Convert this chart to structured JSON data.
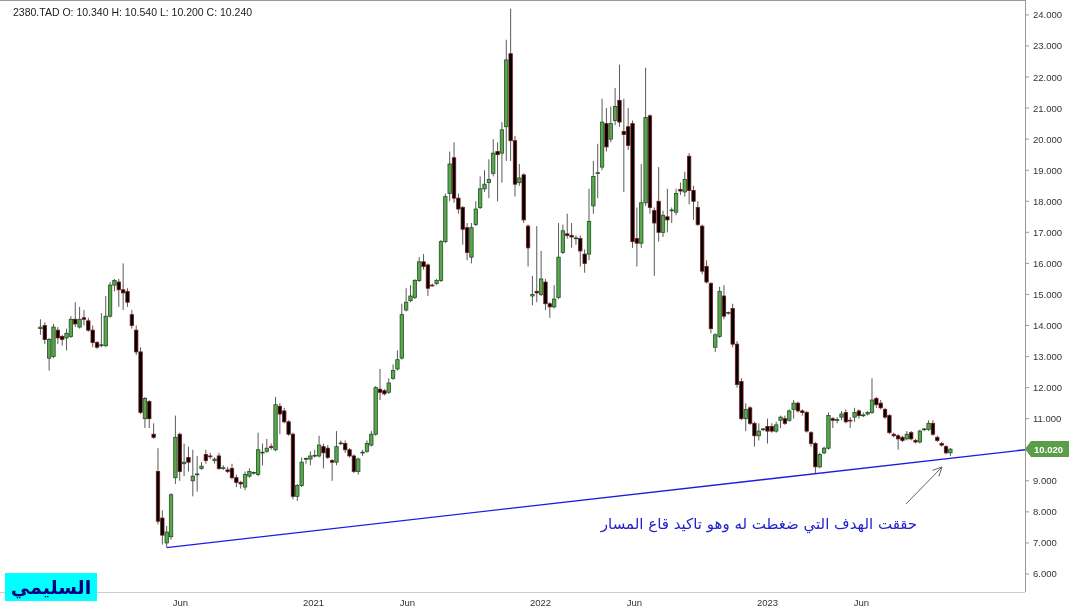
{
  "chart_data": {
    "type": "candlestick",
    "title": "2380.TAD   O: 10.340   H: 10.540   L: 10.200   C: 10.240",
    "x": [
      "2019-10-20",
      "2019-10-27",
      "2019-11-03",
      "2019-11-10",
      "2019-11-17",
      "2019-11-24",
      "2019-12-01",
      "2019-12-08",
      "2019-12-15",
      "2019-12-22",
      "2019-12-29",
      "2020-01-05",
      "2020-01-12",
      "2020-01-19",
      "2020-01-26",
      "2020-02-02",
      "2020-02-09",
      "2020-02-16",
      "2020-02-23",
      "2020-03-01",
      "2020-03-08",
      "2020-03-15",
      "2020-03-22",
      "2020-03-29",
      "2020-04-05",
      "2020-04-12",
      "2020-04-19",
      "2020-04-26",
      "2020-05-03",
      "2020-05-10",
      "2020-05-17",
      "2020-05-24",
      "2020-05-31",
      "2020-06-07",
      "2020-06-14",
      "2020-06-21",
      "2020-06-28",
      "2020-07-05",
      "2020-07-12",
      "2020-07-19",
      "2020-07-26",
      "2020-08-02",
      "2020-08-09",
      "2020-08-16",
      "2020-08-23",
      "2020-08-30",
      "2020-09-06",
      "2020-09-13",
      "2020-09-20",
      "2020-09-27",
      "2020-10-04",
      "2020-10-11",
      "2020-10-18",
      "2020-10-25",
      "2020-11-01",
      "2020-11-08",
      "2020-11-15",
      "2020-11-22",
      "2020-11-29",
      "2020-12-06",
      "2020-12-13",
      "2020-12-20",
      "2020-12-27",
      "2021-01-03",
      "2021-01-10",
      "2021-01-17",
      "2021-01-24",
      "2021-01-31",
      "2021-02-07",
      "2021-02-14",
      "2021-02-21",
      "2021-02-28",
      "2021-03-07",
      "2021-03-14",
      "2021-03-21",
      "2021-03-28",
      "2021-04-04",
      "2021-04-11",
      "2021-04-18",
      "2021-04-25",
      "2021-05-02",
      "2021-05-09",
      "2021-05-16",
      "2021-05-23",
      "2021-05-30",
      "2021-06-06",
      "2021-06-13",
      "2021-06-20",
      "2021-06-27",
      "2021-07-04",
      "2021-07-11",
      "2021-07-18",
      "2021-07-25",
      "2021-08-01",
      "2021-08-08",
      "2021-08-15",
      "2021-08-22",
      "2021-08-29",
      "2021-09-05",
      "2021-09-12",
      "2021-09-19",
      "2021-09-26",
      "2021-10-03",
      "2021-10-10",
      "2021-10-17",
      "2021-10-24",
      "2021-10-31",
      "2021-11-07",
      "2021-11-14",
      "2021-11-21",
      "2021-11-28",
      "2021-12-05",
      "2021-12-12",
      "2021-12-19",
      "2021-12-26",
      "2022-01-02",
      "2022-01-09",
      "2022-01-16",
      "2022-01-23",
      "2022-01-30",
      "2022-02-06",
      "2022-02-13",
      "2022-02-20",
      "2022-02-27",
      "2022-03-06",
      "2022-03-13",
      "2022-03-20",
      "2022-03-27",
      "2022-04-03",
      "2022-04-10",
      "2022-04-17",
      "2022-04-24",
      "2022-05-01",
      "2022-05-08",
      "2022-05-15",
      "2022-05-22",
      "2022-05-29",
      "2022-06-05",
      "2022-06-12",
      "2022-06-19",
      "2022-06-26",
      "2022-07-03",
      "2022-07-10",
      "2022-07-17",
      "2022-07-24",
      "2022-07-31",
      "2022-08-07",
      "2022-08-14",
      "2022-08-21",
      "2022-08-28",
      "2022-09-04",
      "2022-09-11",
      "2022-09-18",
      "2022-09-25",
      "2022-10-02",
      "2022-10-09",
      "2022-10-16",
      "2022-10-23",
      "2022-10-30",
      "2022-11-06",
      "2022-11-13",
      "2022-11-20",
      "2022-11-27",
      "2022-12-04",
      "2022-12-11",
      "2022-12-18",
      "2022-12-25",
      "2023-01-01",
      "2023-01-08",
      "2023-01-15",
      "2023-01-22",
      "2023-01-29",
      "2023-02-05",
      "2023-02-12",
      "2023-02-19",
      "2023-02-26",
      "2023-03-05",
      "2023-03-12",
      "2023-03-19",
      "2023-03-26",
      "2023-04-02",
      "2023-04-09",
      "2023-04-16",
      "2023-04-23",
      "2023-04-30",
      "2023-05-07",
      "2023-05-14",
      "2023-05-21",
      "2023-05-28",
      "2023-06-04",
      "2023-06-11",
      "2023-06-18",
      "2023-06-25",
      "2023-07-02",
      "2023-07-09",
      "2023-07-16",
      "2023-07-23",
      "2023-07-30",
      "2023-08-06",
      "2023-08-13",
      "2023-08-20",
      "2023-08-27",
      "2023-09-03",
      "2023-09-10",
      "2023-09-17",
      "2023-09-24",
      "2023-10-01",
      "2023-10-08",
      "2023-10-15",
      "2023-10-22"
    ],
    "ohlc": [
      [
        13.9,
        14.2,
        13.7,
        13.95
      ],
      [
        14.0,
        14.1,
        13.4,
        13.55
      ],
      [
        12.95,
        13.6,
        12.55,
        13.55
      ],
      [
        13.0,
        14.05,
        12.95,
        13.95
      ],
      [
        13.85,
        13.95,
        13.4,
        13.6
      ],
      [
        13.65,
        13.7,
        13.35,
        13.55
      ],
      [
        13.6,
        13.9,
        13.2,
        13.75
      ],
      [
        13.65,
        14.3,
        13.6,
        14.2
      ],
      [
        14.2,
        14.75,
        13.95,
        14.05
      ],
      [
        13.95,
        14.6,
        13.9,
        14.2
      ],
      [
        14.25,
        14.5,
        14.0,
        14.2
      ],
      [
        14.15,
        14.25,
        13.8,
        13.85
      ],
      [
        13.85,
        14.0,
        13.3,
        13.45
      ],
      [
        13.45,
        13.5,
        13.25,
        13.3
      ],
      [
        13.35,
        14.4,
        13.3,
        13.38
      ],
      [
        13.35,
        14.95,
        13.3,
        14.3
      ],
      [
        14.3,
        15.4,
        14.25,
        15.3
      ],
      [
        15.3,
        15.5,
        15.1,
        15.45
      ],
      [
        15.4,
        15.5,
        14.6,
        15.15
      ],
      [
        15.15,
        16.0,
        14.5,
        15.05
      ],
      [
        15.1,
        15.2,
        14.6,
        14.75
      ],
      [
        14.35,
        14.5,
        13.9,
        14.0
      ],
      [
        13.85,
        14.0,
        13.05,
        13.15
      ],
      [
        13.15,
        13.3,
        11.15,
        11.2
      ],
      [
        11.0,
        11.7,
        10.7,
        11.65
      ],
      [
        11.55,
        11.6,
        10.7,
        11.0
      ],
      [
        10.5,
        10.85,
        10.35,
        10.4
      ],
      [
        9.3,
        10.05,
        7.6,
        7.7
      ],
      [
        7.8,
        8.05,
        6.95,
        7.25
      ],
      [
        7.0,
        7.55,
        6.85,
        7.35
      ],
      [
        7.2,
        8.6,
        7.1,
        8.55
      ],
      [
        9.1,
        11.1,
        8.9,
        10.4
      ],
      [
        10.5,
        10.55,
        9.0,
        9.3
      ],
      [
        9.55,
        10.2,
        9.15,
        9.6
      ],
      [
        9.75,
        10.1,
        9.3,
        9.6
      ],
      [
        9.0,
        10.0,
        8.5,
        9.15
      ],
      [
        9.2,
        9.8,
        8.65,
        9.22
      ],
      [
        9.4,
        9.6,
        9.35,
        9.47
      ],
      [
        9.85,
        10.0,
        9.55,
        9.65
      ],
      [
        9.8,
        9.9,
        9.7,
        9.78
      ],
      [
        9.65,
        9.75,
        9.55,
        9.7
      ],
      [
        9.8,
        9.9,
        9.35,
        9.4
      ],
      [
        9.4,
        9.5,
        9.35,
        9.42
      ],
      [
        9.35,
        9.45,
        9.25,
        9.3
      ],
      [
        9.4,
        9.55,
        9.05,
        9.1
      ],
      [
        9.1,
        9.2,
        8.8,
        8.95
      ],
      [
        8.95,
        9.0,
        8.75,
        8.9
      ],
      [
        8.8,
        9.3,
        8.7,
        9.2
      ],
      [
        9.15,
        9.4,
        9.1,
        9.3
      ],
      [
        9.25,
        9.3,
        9.2,
        9.27
      ],
      [
        9.2,
        10.55,
        9.15,
        10.0
      ],
      [
        9.9,
        10.2,
        9.5,
        9.92
      ],
      [
        9.95,
        10.35,
        9.9,
        10.05
      ],
      [
        10.1,
        10.2,
        10.0,
        10.08
      ],
      [
        10.0,
        11.7,
        9.95,
        11.45
      ],
      [
        11.4,
        11.5,
        10.5,
        11.15
      ],
      [
        11.25,
        11.35,
        10.85,
        10.9
      ],
      [
        10.9,
        10.95,
        10.45,
        10.5
      ],
      [
        10.5,
        10.55,
        8.4,
        8.5
      ],
      [
        8.5,
        8.9,
        8.35,
        8.85
      ],
      [
        8.85,
        9.75,
        8.8,
        9.6
      ],
      [
        9.7,
        9.75,
        9.55,
        9.72
      ],
      [
        9.7,
        9.95,
        9.5,
        9.8
      ],
      [
        9.8,
        10.0,
        9.75,
        9.82
      ],
      [
        9.8,
        10.45,
        9.75,
        10.15
      ],
      [
        10.1,
        10.2,
        9.4,
        9.9
      ],
      [
        10.05,
        10.15,
        9.7,
        9.75
      ],
      [
        9.65,
        9.7,
        9.0,
        9.6
      ],
      [
        9.6,
        10.6,
        9.5,
        10.1
      ],
      [
        10.2,
        10.3,
        10.15,
        10.22
      ],
      [
        10.2,
        10.3,
        9.9,
        10.0
      ],
      [
        10.0,
        10.05,
        9.75,
        9.8
      ],
      [
        9.8,
        9.85,
        9.25,
        9.3
      ],
      [
        9.3,
        9.75,
        9.2,
        9.7
      ],
      [
        9.9,
        10.0,
        9.8,
        9.92
      ],
      [
        9.95,
        10.3,
        9.9,
        10.2
      ],
      [
        10.15,
        10.6,
        10.1,
        10.5
      ],
      [
        10.5,
        12.05,
        10.45,
        12.0
      ],
      [
        11.95,
        12.6,
        11.6,
        11.85
      ],
      [
        11.9,
        11.95,
        11.75,
        11.8
      ],
      [
        11.85,
        12.3,
        11.8,
        12.15
      ],
      [
        12.3,
        12.75,
        12.25,
        12.55
      ],
      [
        12.6,
        13.2,
        12.55,
        12.9
      ],
      [
        12.95,
        14.7,
        12.9,
        14.35
      ],
      [
        14.5,
        15.2,
        14.45,
        14.75
      ],
      [
        14.8,
        15.3,
        14.75,
        14.95
      ],
      [
        14.9,
        15.5,
        14.85,
        15.45
      ],
      [
        15.45,
        16.2,
        15.4,
        16.05
      ],
      [
        16.05,
        16.3,
        15.8,
        15.9
      ],
      [
        15.95,
        16.0,
        14.95,
        15.2
      ],
      [
        15.3,
        15.35,
        15.25,
        15.28
      ],
      [
        15.35,
        15.5,
        15.3,
        15.45
      ],
      [
        15.45,
        16.75,
        15.4,
        16.7
      ],
      [
        16.7,
        18.25,
        16.65,
        18.15
      ],
      [
        18.25,
        19.6,
        18.0,
        19.2
      ],
      [
        19.4,
        19.9,
        17.95,
        18.1
      ],
      [
        18.1,
        18.25,
        17.6,
        17.75
      ],
      [
        17.8,
        17.85,
        16.6,
        17.1
      ],
      [
        17.15,
        17.3,
        16.1,
        16.35
      ],
      [
        16.2,
        17.3,
        16.0,
        17.15
      ],
      [
        17.25,
        18.0,
        17.2,
        17.75
      ],
      [
        17.8,
        18.8,
        17.75,
        18.4
      ],
      [
        18.4,
        19.0,
        18.3,
        18.55
      ],
      [
        18.6,
        19.35,
        18.1,
        18.7
      ],
      [
        18.9,
        20.0,
        18.8,
        19.55
      ],
      [
        19.6,
        19.9,
        18.0,
        19.5
      ],
      [
        19.55,
        20.55,
        18.6,
        20.3
      ],
      [
        20.4,
        23.2,
        19.3,
        22.55
      ],
      [
        22.75,
        24.2,
        19.3,
        19.95
      ],
      [
        19.95,
        20.1,
        18.15,
        18.55
      ],
      [
        18.6,
        19.2,
        18.5,
        18.75
      ],
      [
        18.85,
        18.9,
        17.3,
        17.4
      ],
      [
        17.2,
        17.25,
        15.9,
        16.5
      ],
      [
        14.95,
        15.6,
        14.65,
        15.0
      ],
      [
        15.1,
        17.2,
        14.75,
        15.05
      ],
      [
        15.0,
        16.4,
        14.95,
        15.5
      ],
      [
        15.4,
        15.5,
        14.5,
        14.7
      ],
      [
        14.7,
        14.75,
        14.25,
        14.6
      ],
      [
        14.6,
        15.3,
        14.55,
        14.85
      ],
      [
        14.9,
        17.3,
        14.85,
        16.2
      ],
      [
        16.35,
        17.25,
        16.3,
        17.05
      ],
      [
        16.95,
        17.6,
        16.8,
        16.9
      ],
      [
        16.9,
        17.3,
        16.5,
        16.85
      ],
      [
        16.8,
        16.9,
        16.6,
        16.82
      ],
      [
        16.8,
        16.9,
        15.9,
        16.4
      ],
      [
        16.3,
        16.45,
        15.7,
        16.0
      ],
      [
        16.3,
        18.4,
        16.1,
        17.35
      ],
      [
        17.85,
        19.3,
        17.6,
        18.8
      ],
      [
        18.9,
        19.85,
        18.1,
        18.92
      ],
      [
        19.1,
        21.3,
        19.0,
        20.55
      ],
      [
        20.5,
        21.0,
        19.6,
        19.75
      ],
      [
        20.0,
        21.05,
        19.9,
        20.5
      ],
      [
        20.6,
        21.65,
        20.45,
        21.05
      ],
      [
        21.25,
        22.4,
        20.4,
        20.55
      ],
      [
        20.25,
        21.3,
        18.3,
        20.15
      ],
      [
        20.4,
        21.0,
        19.65,
        19.8
      ],
      [
        20.5,
        20.6,
        16.5,
        16.7
      ],
      [
        16.8,
        17.8,
        15.9,
        16.65
      ],
      [
        16.65,
        19.2,
        16.5,
        17.95
      ],
      [
        17.95,
        22.3,
        17.85,
        20.7
      ],
      [
        20.75,
        20.8,
        17.6,
        17.8
      ],
      [
        17.7,
        17.8,
        15.6,
        17.3
      ],
      [
        18.0,
        19.1,
        16.7,
        17.0
      ],
      [
        17.0,
        17.7,
        16.85,
        17.55
      ],
      [
        17.5,
        18.4,
        17.0,
        17.4
      ],
      [
        17.7,
        17.8,
        17.3,
        17.72
      ],
      [
        17.65,
        18.4,
        17.55,
        18.25
      ],
      [
        18.38,
        18.6,
        18.2,
        18.33
      ],
      [
        18.3,
        18.95,
        18.15,
        18.7
      ],
      [
        19.45,
        19.55,
        17.9,
        18.35
      ],
      [
        18.35,
        18.5,
        17.4,
        18.0
      ],
      [
        17.8,
        18.0,
        17.2,
        17.25
      ],
      [
        17.2,
        17.25,
        15.65,
        15.75
      ],
      [
        15.9,
        16.1,
        15.35,
        15.4
      ],
      [
        15.35,
        15.4,
        13.75,
        13.9
      ],
      [
        13.3,
        13.75,
        13.15,
        13.7
      ],
      [
        13.65,
        15.25,
        13.6,
        15.1
      ],
      [
        14.95,
        15.3,
        14.2,
        14.3
      ],
      [
        14.4,
        14.45,
        14.35,
        14.42
      ],
      [
        14.55,
        14.7,
        13.3,
        13.4
      ],
      [
        13.4,
        13.5,
        12.0,
        12.1
      ],
      [
        12.2,
        12.3,
        10.95,
        11.0
      ],
      [
        11.0,
        11.5,
        10.6,
        11.3
      ],
      [
        11.35,
        11.4,
        10.8,
        10.85
      ],
      [
        10.85,
        10.9,
        10.1,
        10.45
      ],
      [
        10.45,
        10.85,
        10.3,
        10.6
      ],
      [
        10.65,
        10.7,
        10.6,
        10.67
      ],
      [
        10.75,
        11.0,
        10.2,
        10.6
      ],
      [
        10.75,
        10.85,
        10.55,
        10.6
      ],
      [
        10.6,
        10.9,
        10.55,
        10.8
      ],
      [
        10.95,
        11.1,
        10.7,
        11.05
      ],
      [
        11.0,
        11.1,
        10.8,
        10.85
      ],
      [
        10.95,
        11.3,
        10.9,
        11.25
      ],
      [
        11.3,
        11.6,
        11.0,
        11.5
      ],
      [
        11.5,
        11.55,
        11.2,
        11.25
      ],
      [
        11.25,
        11.3,
        11.1,
        11.2
      ],
      [
        11.2,
        11.25,
        10.55,
        10.6
      ],
      [
        10.55,
        10.6,
        10.1,
        10.2
      ],
      [
        10.2,
        10.25,
        9.25,
        9.45
      ],
      [
        9.45,
        9.9,
        9.4,
        9.85
      ],
      [
        9.9,
        10.1,
        9.85,
        10.05
      ],
      [
        10.05,
        11.2,
        10.0,
        11.1
      ],
      [
        11.0,
        11.05,
        10.7,
        10.95
      ],
      [
        10.95,
        11.05,
        10.85,
        10.97
      ],
      [
        11.05,
        11.25,
        10.95,
        11.15
      ],
      [
        11.2,
        11.3,
        10.85,
        10.9
      ],
      [
        10.95,
        11.05,
        10.7,
        10.93
      ],
      [
        11.05,
        11.35,
        10.9,
        11.2
      ],
      [
        11.25,
        11.3,
        11.0,
        11.1
      ],
      [
        11.1,
        11.2,
        11.05,
        11.12
      ],
      [
        11.15,
        11.25,
        11.1,
        11.2
      ],
      [
        11.2,
        12.3,
        11.15,
        11.6
      ],
      [
        11.65,
        11.7,
        11.35,
        11.45
      ],
      [
        11.5,
        11.6,
        11.3,
        11.35
      ],
      [
        11.3,
        11.35,
        11.0,
        11.05
      ],
      [
        11.1,
        11.15,
        10.5,
        10.55
      ],
      [
        10.5,
        10.55,
        10.4,
        10.45
      ],
      [
        10.45,
        10.5,
        10.0,
        10.35
      ],
      [
        10.4,
        10.45,
        10.25,
        10.3
      ],
      [
        10.35,
        10.6,
        10.3,
        10.5
      ],
      [
        10.55,
        10.6,
        10.3,
        10.35
      ],
      [
        10.3,
        10.35,
        10.2,
        10.25
      ],
      [
        10.25,
        10.65,
        10.2,
        10.6
      ],
      [
        10.65,
        10.7,
        10.6,
        10.67
      ],
      [
        10.65,
        10.95,
        10.6,
        10.85
      ],
      [
        10.85,
        10.95,
        10.45,
        10.5
      ],
      [
        10.4,
        10.45,
        10.25,
        10.3
      ],
      [
        10.2,
        10.25,
        10.1,
        10.15
      ],
      [
        10.1,
        10.15,
        9.85,
        9.9
      ],
      [
        9.9,
        10.05,
        9.8,
        10.02
      ]
    ],
    "series": [
      {
        "type": "line",
        "x": [
          "2020-05-10",
          "2024-02-19"
        ],
        "values": [
          6.85,
          10.0
        ],
        "color": "#1c1ce0"
      }
    ],
    "annotations": [
      "حققت الهدف التي ضغطت له وهو تاكيد قاع المسار",
      "السليمي",
      "10.020"
    ],
    "xlim": [
      "2019-08-16",
      "2024-02-19"
    ],
    "ylim": [
      5.42,
      24.48
    ],
    "xticks": [
      {
        "value": "2020-06-01",
        "label": "Jun"
      },
      {
        "value": "2021-01-01",
        "label": "2021"
      },
      {
        "value": "2021-06-01",
        "label": "Jun"
      },
      {
        "value": "2022-01-01",
        "label": "2022"
      },
      {
        "value": "2022-06-01",
        "label": "Jun"
      },
      {
        "value": "2023-01-01",
        "label": "2023"
      },
      {
        "value": "2023-06-01",
        "label": "Jun"
      }
    ],
    "yticks": [
      {
        "value": 6,
        "label": "6.000"
      },
      {
        "value": 7,
        "label": "7.000"
      },
      {
        "value": 8,
        "label": "8.000"
      },
      {
        "value": 9,
        "label": "9.000"
      },
      {
        "value": 10,
        "label": null
      },
      {
        "value": 11,
        "label": "11.000"
      },
      {
        "value": 12,
        "label": "12.000"
      },
      {
        "value": 13,
        "label": "13.000"
      },
      {
        "value": 14,
        "label": "14.000"
      },
      {
        "value": 15,
        "label": "15.000"
      },
      {
        "value": 16,
        "label": "16.000"
      },
      {
        "value": 17,
        "label": "17.000"
      },
      {
        "value": 18,
        "label": "18.000"
      },
      {
        "value": 19,
        "label": "19.000"
      },
      {
        "value": 20,
        "label": "20.000"
      },
      {
        "value": 21,
        "label": "21.000"
      },
      {
        "value": 22,
        "label": "22.000"
      },
      {
        "value": 23,
        "label": "23.000"
      },
      {
        "value": 24,
        "label": "24.000"
      }
    ]
  }
}
